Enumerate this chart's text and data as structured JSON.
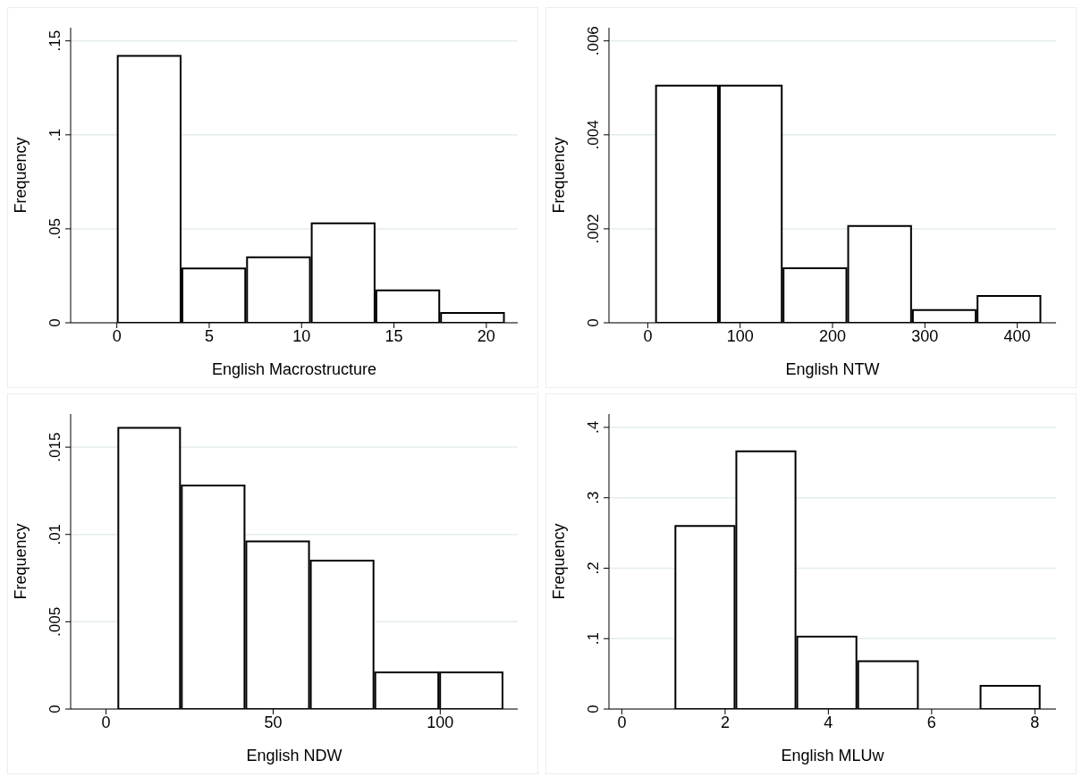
{
  "chart_data": [
    {
      "type": "histogram",
      "xlabel": "English Macrostructure",
      "ylabel": "Frequency",
      "color": "#ffffff",
      "grid": "y",
      "bins": [
        0,
        3.5,
        7,
        10.5,
        14,
        17.5,
        21
      ],
      "values": [
        0.142,
        0.0289,
        0.0349,
        0.0529,
        0.0172,
        0.0052
      ],
      "xlim": [
        -2.5,
        21.7
      ],
      "xticks": [
        0,
        5,
        10,
        15,
        20
      ],
      "ylim": [
        0,
        0.157
      ],
      "yticks": [
        {
          "value": 0,
          "label": "0"
        },
        {
          "value": 0.05,
          "label": ".05"
        },
        {
          "value": 0.1,
          "label": ".1"
        },
        {
          "value": 0.15,
          "label": ".15"
        }
      ]
    },
    {
      "type": "histogram",
      "xlabel": "English NTW",
      "ylabel": "Frequency",
      "color": "#ffffff",
      "grid": "y",
      "bins": [
        8,
        77,
        146,
        216,
        286,
        356,
        426
      ],
      "values": [
        0.00505,
        0.00505,
        0.00116,
        0.00206,
        0.00027,
        0.00057
      ],
      "xlim": [
        -42,
        442
      ],
      "xticks": [
        0,
        100,
        200,
        300,
        400
      ],
      "ylim": [
        0,
        0.00628
      ],
      "yticks": [
        {
          "value": 0,
          "label": "0"
        },
        {
          "value": 0.002,
          "label": ".002"
        },
        {
          "value": 0.004,
          "label": ".004"
        },
        {
          "value": 0.006,
          "label": ".006"
        }
      ]
    },
    {
      "type": "histogram",
      "xlabel": "English NDW",
      "ylabel": "Frequency",
      "color": "#ffffff",
      "grid": "y",
      "bins": [
        3.4,
        22.4,
        41.7,
        61,
        80.3,
        99.7,
        118.9
      ],
      "values": [
        0.0161,
        0.0128,
        0.0096,
        0.0085,
        0.0021,
        0.0021
      ],
      "xlim": [
        -10.6,
        123.2
      ],
      "xticks": [
        0,
        50,
        100
      ],
      "ylim": [
        0,
        0.0169
      ],
      "yticks": [
        {
          "value": 0,
          "label": "0"
        },
        {
          "value": 0.005,
          "label": ".005"
        },
        {
          "value": 0.01,
          "label": ".01"
        },
        {
          "value": 0.015,
          "label": ".015"
        }
      ]
    },
    {
      "type": "histogram",
      "xlabel": "English MLUw",
      "ylabel": "Frequency",
      "color": "#ffffff",
      "grid": "y",
      "bins": [
        1.02,
        2.2,
        3.38,
        4.56,
        5.75,
        6.93,
        8.11
      ],
      "values": [
        0.26,
        0.366,
        0.103,
        0.068,
        0,
        0.033
      ],
      "xlim": [
        -0.25,
        8.41
      ],
      "xticks": [
        0,
        2,
        4,
        6,
        8
      ],
      "ylim": [
        0,
        0.419
      ],
      "yticks": [
        {
          "value": 0,
          "label": "0"
        },
        {
          "value": 0.1,
          "label": ".1"
        },
        {
          "value": 0.2,
          "label": ".2"
        },
        {
          "value": 0.3,
          "label": ".3"
        },
        {
          "value": 0.4,
          "label": ".4"
        }
      ]
    }
  ]
}
